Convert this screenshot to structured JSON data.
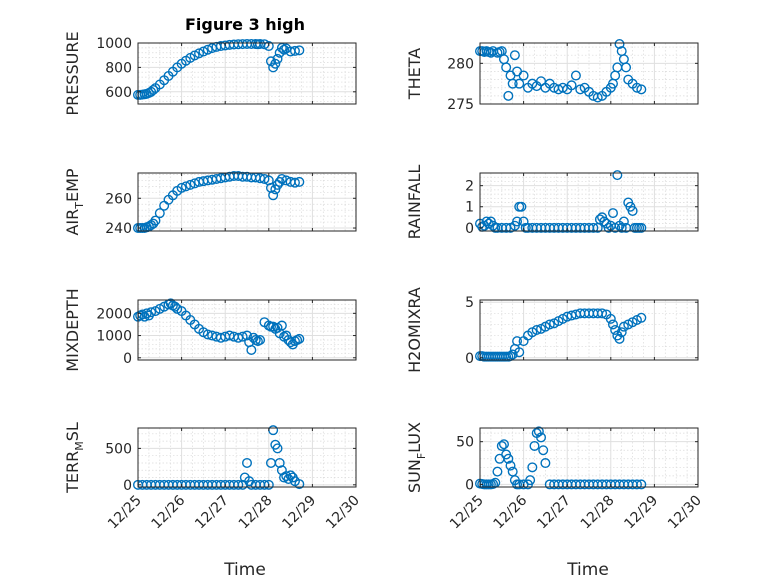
{
  "chart_data": {
    "type": "scatter",
    "title": "Figure 3 high",
    "xlabel": "Time",
    "x_ticks": [
      "12/25",
      "12/26",
      "12/27",
      "12/28",
      "12/29",
      "12/30"
    ],
    "marker_color": "#0072BD",
    "panels": [
      {
        "name": "pressure",
        "ylabel": "PRESSURE",
        "ylim": [
          500,
          1000
        ],
        "yticks": [
          {
            "v": 600,
            "t": "600"
          },
          {
            "v": 800,
            "t": "800"
          },
          {
            "v": 1000,
            "t": "1000"
          }
        ],
        "x": [
          0,
          0.05,
          0.1,
          0.15,
          0.2,
          0.25,
          0.3,
          0.35,
          0.4,
          0.5,
          0.6,
          0.7,
          0.8,
          0.9,
          1.0,
          1.1,
          1.2,
          1.3,
          1.4,
          1.5,
          1.6,
          1.7,
          1.8,
          1.9,
          2.0,
          2.1,
          2.2,
          2.3,
          2.4,
          2.5,
          2.6,
          2.7,
          2.75,
          2.8,
          2.9,
          3.0,
          3.05,
          3.1,
          3.15,
          3.2,
          3.25,
          3.3,
          3.35,
          3.4,
          3.5,
          3.6,
          3.7
        ],
        "y": [
          575,
          575,
          577,
          580,
          583,
          590,
          600,
          615,
          630,
          660,
          695,
          730,
          765,
          800,
          830,
          855,
          878,
          898,
          915,
          930,
          945,
          958,
          968,
          975,
          980,
          985,
          988,
          990,
          991,
          993,
          994,
          995,
          990,
          993,
          990,
          975,
          850,
          800,
          830,
          870,
          920,
          960,
          945,
          955,
          930,
          935,
          940
        ]
      },
      {
        "name": "theta",
        "ylabel": "THETA",
        "ylim": [
          275,
          282.5
        ],
        "yticks": [
          {
            "v": 275,
            "t": "275"
          },
          {
            "v": 280,
            "t": "280"
          }
        ],
        "x": [
          0,
          0.05,
          0.1,
          0.15,
          0.2,
          0.25,
          0.3,
          0.4,
          0.45,
          0.5,
          0.55,
          0.6,
          0.65,
          0.7,
          0.75,
          0.8,
          0.85,
          0.9,
          1.0,
          1.1,
          1.2,
          1.3,
          1.4,
          1.5,
          1.6,
          1.7,
          1.8,
          1.9,
          2.0,
          2.1,
          2.2,
          2.3,
          2.4,
          2.5,
          2.6,
          2.7,
          2.8,
          2.9,
          3.0,
          3.05,
          3.1,
          3.15,
          3.2,
          3.25,
          3.3,
          3.35,
          3.4,
          3.5,
          3.6,
          3.7
        ],
        "y": [
          281.5,
          281.5,
          281.4,
          281.5,
          281.4,
          281.3,
          281.5,
          281.3,
          281.4,
          281.5,
          280.5,
          279.5,
          276,
          278.5,
          277.5,
          281,
          279,
          277.5,
          278.5,
          277,
          277.5,
          277.2,
          277.8,
          277,
          277.5,
          277,
          276.8,
          277,
          276.8,
          277.3,
          278.5,
          276.8,
          277,
          276.5,
          276,
          275.8,
          276,
          276.5,
          277,
          277.5,
          278.5,
          279.5,
          282.5,
          281.5,
          280.5,
          279.5,
          278,
          277.5,
          277,
          276.8
        ]
      },
      {
        "name": "air-temp",
        "ylabel_main": "AIR",
        "ylabel_sub": "T",
        "ylabel_tail": "EMP",
        "ylim": [
          238,
          277
        ],
        "yticks": [
          {
            "v": 240,
            "t": "240"
          },
          {
            "v": 260,
            "t": "260"
          }
        ],
        "x": [
          0,
          0.05,
          0.1,
          0.15,
          0.2,
          0.25,
          0.3,
          0.35,
          0.4,
          0.5,
          0.6,
          0.7,
          0.8,
          0.9,
          1.0,
          1.1,
          1.2,
          1.3,
          1.4,
          1.5,
          1.6,
          1.7,
          1.8,
          1.9,
          2.0,
          2.1,
          2.2,
          2.3,
          2.4,
          2.5,
          2.6,
          2.7,
          2.8,
          2.9,
          3.0,
          3.05,
          3.1,
          3.15,
          3.2,
          3.25,
          3.3,
          3.4,
          3.5,
          3.6,
          3.7
        ],
        "y": [
          240,
          240,
          240,
          240,
          240.5,
          241,
          242,
          243,
          245,
          250,
          255,
          259,
          262,
          265,
          267,
          268,
          269,
          270,
          271,
          271.5,
          272,
          272.5,
          273,
          273.5,
          274,
          274.5,
          275,
          275,
          274.5,
          274.5,
          274,
          274,
          273.5,
          273,
          272,
          267,
          262,
          266,
          269,
          271,
          273,
          272,
          271,
          270.5,
          271
        ]
      },
      {
        "name": "rainfall",
        "ylabel": "RAINFALL",
        "ylim": [
          -0.15,
          2.6
        ],
        "yticks": [
          {
            "v": 0,
            "t": "0"
          },
          {
            "v": 1,
            "t": "1"
          },
          {
            "v": 2,
            "t": "2"
          }
        ],
        "x": [
          0,
          0.05,
          0.1,
          0.15,
          0.2,
          0.25,
          0.3,
          0.35,
          0.4,
          0.5,
          0.6,
          0.7,
          0.8,
          0.85,
          0.9,
          0.95,
          1.0,
          1.05,
          1.1,
          1.2,
          1.3,
          1.4,
          1.5,
          1.6,
          1.7,
          1.8,
          1.9,
          2.0,
          2.1,
          2.2,
          2.3,
          2.4,
          2.5,
          2.6,
          2.7,
          2.75,
          2.8,
          2.85,
          2.9,
          2.95,
          3.0,
          3.05,
          3.1,
          3.15,
          3.2,
          3.25,
          3.3,
          3.35,
          3.4,
          3.45,
          3.5,
          3.55,
          3.6,
          3.65,
          3.7
        ],
        "y": [
          0.2,
          0.05,
          0.1,
          0.3,
          0.2,
          0.3,
          0.1,
          0,
          0,
          0,
          0,
          0,
          0.1,
          0.3,
          1,
          1,
          0.3,
          0,
          0,
          0,
          0,
          0,
          0,
          0,
          0,
          0,
          0,
          0,
          0,
          0,
          0,
          0,
          0,
          0,
          0,
          0.4,
          0.5,
          0.3,
          0.2,
          0,
          0.1,
          0.7,
          0,
          2.5,
          0.1,
          0,
          0.3,
          0,
          1.2,
          1,
          0.8,
          0,
          0,
          0,
          0
        ]
      },
      {
        "name": "mixdepth",
        "ylabel": "MIXDEPTH",
        "ylim": [
          -100,
          2600
        ],
        "yticks": [
          {
            "v": 0,
            "t": "0"
          },
          {
            "v": 1000,
            "t": "1000"
          },
          {
            "v": 2000,
            "t": "2000"
          }
        ],
        "x": [
          0,
          0.05,
          0.1,
          0.15,
          0.2,
          0.25,
          0.3,
          0.4,
          0.5,
          0.6,
          0.7,
          0.75,
          0.8,
          0.85,
          0.9,
          1.0,
          1.1,
          1.2,
          1.3,
          1.4,
          1.5,
          1.6,
          1.7,
          1.8,
          1.9,
          2.0,
          2.1,
          2.2,
          2.3,
          2.4,
          2.5,
          2.55,
          2.6,
          2.65,
          2.7,
          2.75,
          2.8,
          2.9,
          3.0,
          3.05,
          3.1,
          3.15,
          3.2,
          3.25,
          3.3,
          3.35,
          3.4,
          3.45,
          3.5,
          3.55,
          3.6,
          3.65,
          3.7
        ],
        "y": [
          1850,
          1900,
          1950,
          1850,
          2000,
          1900,
          2050,
          2100,
          2200,
          2300,
          2400,
          2450,
          2350,
          2300,
          2200,
          2100,
          1900,
          1700,
          1500,
          1300,
          1150,
          1050,
          1000,
          950,
          900,
          950,
          1000,
          950,
          900,
          950,
          1000,
          700,
          350,
          900,
          800,
          750,
          800,
          1600,
          1450,
          1400,
          1400,
          1300,
          1350,
          1100,
          1450,
          950,
          1000,
          800,
          700,
          600,
          750,
          800,
          850
        ]
      },
      {
        "name": "h2omixra",
        "ylabel": "H2OMIXRA",
        "ylim": [
          -0.2,
          5.2
        ],
        "yticks": [
          {
            "v": 0,
            "t": "0"
          },
          {
            "v": 5,
            "t": "5"
          }
        ],
        "x": [
          0,
          0.05,
          0.1,
          0.15,
          0.2,
          0.25,
          0.3,
          0.35,
          0.4,
          0.45,
          0.5,
          0.55,
          0.6,
          0.65,
          0.7,
          0.75,
          0.8,
          0.85,
          0.9,
          1.0,
          1.1,
          1.2,
          1.3,
          1.4,
          1.5,
          1.6,
          1.7,
          1.8,
          1.9,
          2.0,
          2.1,
          2.2,
          2.3,
          2.4,
          2.5,
          2.6,
          2.7,
          2.8,
          2.9,
          3.0,
          3.05,
          3.1,
          3.15,
          3.2,
          3.25,
          3.3,
          3.4,
          3.5,
          3.6,
          3.7
        ],
        "y": [
          0.15,
          0.15,
          0.1,
          0.1,
          0.1,
          0.1,
          0.1,
          0.1,
          0.1,
          0.1,
          0.1,
          0.1,
          0.1,
          0.1,
          0.15,
          0.3,
          0.8,
          1.5,
          0.5,
          1.5,
          2,
          2.3,
          2.5,
          2.6,
          2.8,
          3,
          3.1,
          3.3,
          3.5,
          3.7,
          3.8,
          3.9,
          4,
          4,
          4,
          4,
          4,
          4,
          3.9,
          3.5,
          3,
          2.5,
          2,
          1.7,
          2.3,
          2.8,
          3,
          3.2,
          3.4,
          3.6
        ]
      },
      {
        "name": "terr-msl",
        "ylabel_main": "TERR",
        "ylabel_sub": "M",
        "ylabel_tail": "SL",
        "ylim": [
          -30,
          780
        ],
        "yticks": [
          {
            "v": 0,
            "t": "0"
          },
          {
            "v": 500,
            "t": "500"
          }
        ],
        "x": [
          0,
          0.1,
          0.2,
          0.3,
          0.4,
          0.5,
          0.6,
          0.7,
          0.8,
          0.9,
          1.0,
          1.1,
          1.2,
          1.3,
          1.4,
          1.5,
          1.6,
          1.7,
          1.8,
          1.9,
          2.0,
          2.1,
          2.2,
          2.3,
          2.4,
          2.45,
          2.5,
          2.55,
          2.6,
          2.7,
          2.8,
          2.9,
          3.0,
          3.05,
          3.1,
          3.15,
          3.2,
          3.25,
          3.3,
          3.35,
          3.4,
          3.45,
          3.5,
          3.55,
          3.6,
          3.7
        ],
        "y": [
          0,
          0,
          0,
          0,
          0,
          0,
          0,
          0,
          0,
          0,
          0,
          0,
          0,
          0,
          0,
          0,
          0,
          0,
          0,
          0,
          0,
          0,
          0,
          0,
          0,
          100,
          300,
          50,
          0,
          0,
          0,
          0,
          0,
          300,
          750,
          550,
          500,
          300,
          200,
          100,
          120,
          80,
          130,
          100,
          50,
          10
        ]
      },
      {
        "name": "sun-flux",
        "ylabel_main": "SUN",
        "ylabel_sub": "F",
        "ylabel_tail": "LUX",
        "ylim": [
          -3,
          66
        ],
        "yticks": [
          {
            "v": 0,
            "t": "0"
          },
          {
            "v": 50,
            "t": "50"
          }
        ],
        "x": [
          0,
          0.05,
          0.1,
          0.15,
          0.2,
          0.25,
          0.3,
          0.35,
          0.4,
          0.45,
          0.5,
          0.55,
          0.6,
          0.65,
          0.7,
          0.75,
          0.8,
          0.85,
          0.9,
          1.0,
          1.1,
          1.15,
          1.2,
          1.25,
          1.3,
          1.35,
          1.4,
          1.45,
          1.5,
          1.6,
          1.7,
          1.8,
          1.9,
          2.0,
          2.1,
          2.2,
          2.3,
          2.4,
          2.5,
          2.6,
          2.7,
          2.8,
          2.9,
          3.0,
          3.1,
          3.2,
          3.3,
          3.4,
          3.5,
          3.6,
          3.7
        ],
        "y": [
          1,
          0.5,
          0,
          0,
          0,
          0,
          0.5,
          2,
          15,
          30,
          45,
          47,
          35,
          30,
          22,
          15,
          5,
          0,
          0,
          0,
          0,
          5,
          20,
          45,
          60,
          62,
          55,
          40,
          25,
          0,
          0,
          0,
          0,
          0,
          0,
          0,
          0,
          0,
          0,
          0,
          0,
          0,
          0,
          0,
          0,
          0,
          0,
          0,
          0,
          0,
          0
        ]
      }
    ]
  }
}
